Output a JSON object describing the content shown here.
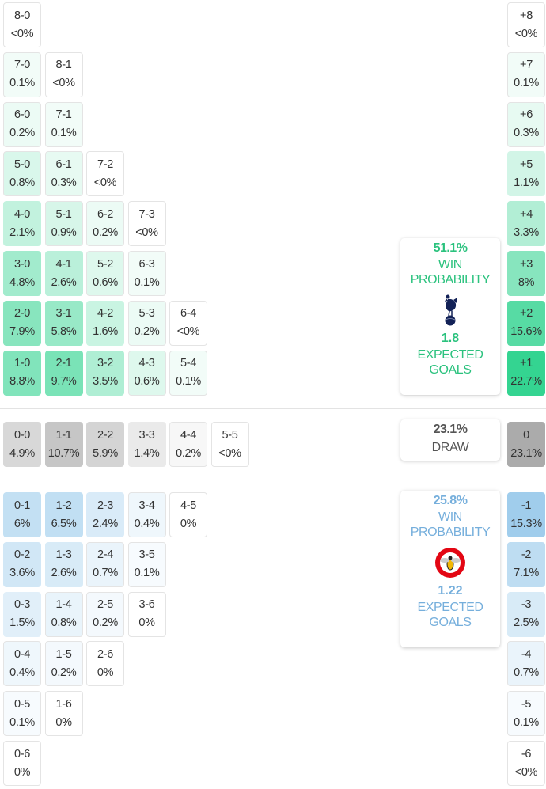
{
  "colors": {
    "home": "#1fcf86",
    "draw": "#a3a3a3",
    "away": "#7fbce6",
    "home_text": "#2bc27e",
    "away_text": "#76afdc"
  },
  "home_scores": [
    [
      {
        "score": "8-0",
        "pct": "<0%",
        "p": 0
      }
    ],
    [
      {
        "score": "7-0",
        "pct": "0.1%",
        "p": 0.1
      },
      {
        "score": "8-1",
        "pct": "<0%",
        "p": 0
      }
    ],
    [
      {
        "score": "6-0",
        "pct": "0.2%",
        "p": 0.2
      },
      {
        "score": "7-1",
        "pct": "0.1%",
        "p": 0.1
      }
    ],
    [
      {
        "score": "5-0",
        "pct": "0.8%",
        "p": 0.8
      },
      {
        "score": "6-1",
        "pct": "0.3%",
        "p": 0.3
      },
      {
        "score": "7-2",
        "pct": "<0%",
        "p": 0
      }
    ],
    [
      {
        "score": "4-0",
        "pct": "2.1%",
        "p": 2.1
      },
      {
        "score": "5-1",
        "pct": "0.9%",
        "p": 0.9
      },
      {
        "score": "6-2",
        "pct": "0.2%",
        "p": 0.2
      },
      {
        "score": "7-3",
        "pct": "<0%",
        "p": 0
      }
    ],
    [
      {
        "score": "3-0",
        "pct": "4.8%",
        "p": 4.8
      },
      {
        "score": "4-1",
        "pct": "2.6%",
        "p": 2.6
      },
      {
        "score": "5-2",
        "pct": "0.6%",
        "p": 0.6
      },
      {
        "score": "6-3",
        "pct": "0.1%",
        "p": 0.1
      }
    ],
    [
      {
        "score": "2-0",
        "pct": "7.9%",
        "p": 7.9
      },
      {
        "score": "3-1",
        "pct": "5.8%",
        "p": 5.8
      },
      {
        "score": "4-2",
        "pct": "1.6%",
        "p": 1.6
      },
      {
        "score": "5-3",
        "pct": "0.2%",
        "p": 0.2
      },
      {
        "score": "6-4",
        "pct": "<0%",
        "p": 0
      }
    ],
    [
      {
        "score": "1-0",
        "pct": "8.8%",
        "p": 8.8
      },
      {
        "score": "2-1",
        "pct": "9.7%",
        "p": 9.7
      },
      {
        "score": "3-2",
        "pct": "3.5%",
        "p": 3.5
      },
      {
        "score": "4-3",
        "pct": "0.6%",
        "p": 0.6
      },
      {
        "score": "5-4",
        "pct": "0.1%",
        "p": 0.1
      }
    ]
  ],
  "home_margins": [
    {
      "score": "+8",
      "pct": "<0%",
      "p": 0
    },
    {
      "score": "+7",
      "pct": "0.1%",
      "p": 0.1
    },
    {
      "score": "+6",
      "pct": "0.3%",
      "p": 0.3
    },
    {
      "score": "+5",
      "pct": "1.1%",
      "p": 1.1
    },
    {
      "score": "+4",
      "pct": "3.3%",
      "p": 3.3
    },
    {
      "score": "+3",
      "pct": "8%",
      "p": 8
    },
    {
      "score": "+2",
      "pct": "15.6%",
      "p": 15.6
    },
    {
      "score": "+1",
      "pct": "22.7%",
      "p": 22.7
    }
  ],
  "draw_scores": [
    {
      "score": "0-0",
      "pct": "4.9%",
      "p": 4.9
    },
    {
      "score": "1-1",
      "pct": "10.7%",
      "p": 10.7
    },
    {
      "score": "2-2",
      "pct": "5.9%",
      "p": 5.9
    },
    {
      "score": "3-3",
      "pct": "1.4%",
      "p": 1.4
    },
    {
      "score": "4-4",
      "pct": "0.2%",
      "p": 0.2
    },
    {
      "score": "5-5",
      "pct": "<0%",
      "p": 0
    }
  ],
  "draw_margin": {
    "score": "0",
    "pct": "23.1%",
    "p": 23.1
  },
  "away_scores": [
    [
      {
        "score": "0-1",
        "pct": "6%",
        "p": 6
      },
      {
        "score": "1-2",
        "pct": "6.5%",
        "p": 6.5
      },
      {
        "score": "2-3",
        "pct": "2.4%",
        "p": 2.4
      },
      {
        "score": "3-4",
        "pct": "0.4%",
        "p": 0.4
      },
      {
        "score": "4-5",
        "pct": "0%",
        "p": 0
      }
    ],
    [
      {
        "score": "0-2",
        "pct": "3.6%",
        "p": 3.6
      },
      {
        "score": "1-3",
        "pct": "2.6%",
        "p": 2.6
      },
      {
        "score": "2-4",
        "pct": "0.7%",
        "p": 0.7
      },
      {
        "score": "3-5",
        "pct": "0.1%",
        "p": 0.1
      }
    ],
    [
      {
        "score": "0-3",
        "pct": "1.5%",
        "p": 1.5
      },
      {
        "score": "1-4",
        "pct": "0.8%",
        "p": 0.8
      },
      {
        "score": "2-5",
        "pct": "0.2%",
        "p": 0.2
      },
      {
        "score": "3-6",
        "pct": "0%",
        "p": 0
      }
    ],
    [
      {
        "score": "0-4",
        "pct": "0.4%",
        "p": 0.4
      },
      {
        "score": "1-5",
        "pct": "0.2%",
        "p": 0.2
      },
      {
        "score": "2-6",
        "pct": "0%",
        "p": 0
      }
    ],
    [
      {
        "score": "0-5",
        "pct": "0.1%",
        "p": 0.1
      },
      {
        "score": "1-6",
        "pct": "0%",
        "p": 0
      }
    ],
    [
      {
        "score": "0-6",
        "pct": "0%",
        "p": 0
      }
    ]
  ],
  "away_margins": [
    {
      "score": "-1",
      "pct": "15.3%",
      "p": 15.3
    },
    {
      "score": "-2",
      "pct": "7.1%",
      "p": 7.1
    },
    {
      "score": "-3",
      "pct": "2.5%",
      "p": 2.5
    },
    {
      "score": "-4",
      "pct": "0.7%",
      "p": 0.7
    },
    {
      "score": "-5",
      "pct": "0.1%",
      "p": 0.1
    },
    {
      "score": "-6",
      "pct": "<0%",
      "p": 0
    }
  ],
  "home_summary": {
    "win_pct": "51.1%",
    "win_label_1": "WIN",
    "win_label_2": "PROBABILITY",
    "xg": "1.8",
    "xg_label_1": "EXPECTED",
    "xg_label_2": "GOALS",
    "logo_icon": "tottenham-crest"
  },
  "draw_summary": {
    "pct": "23.1%",
    "label": "DRAW"
  },
  "away_summary": {
    "win_pct": "25.8%",
    "win_label_1": "WIN",
    "win_label_2": "PROBABILITY",
    "xg": "1.22",
    "xg_label_1": "EXPECTED",
    "xg_label_2": "GOALS",
    "logo_icon": "brentford-crest"
  }
}
